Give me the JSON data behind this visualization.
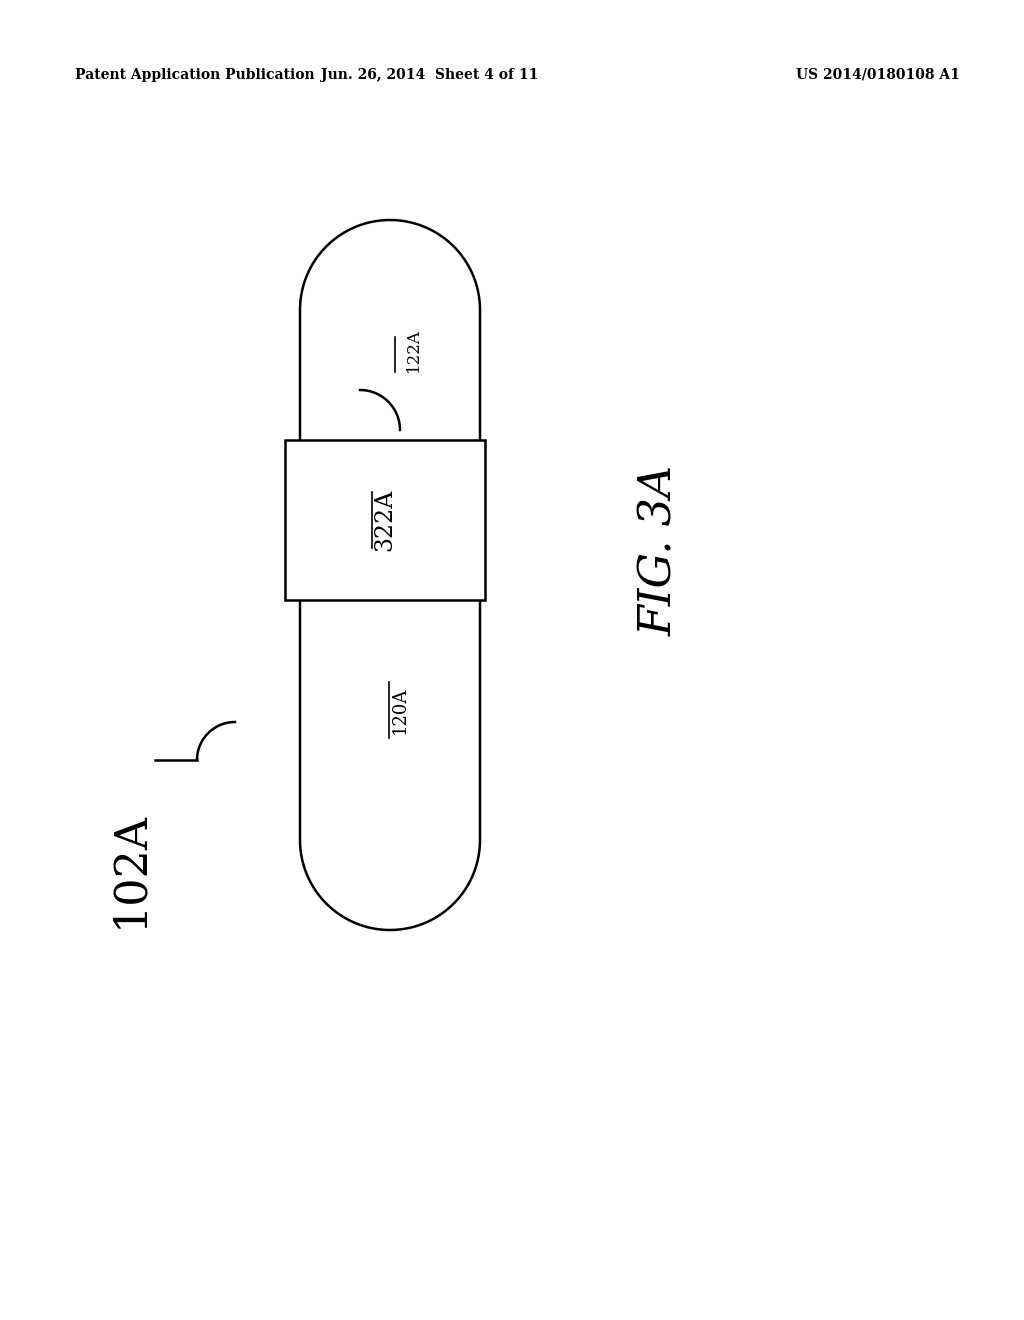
{
  "bg_color": "#ffffff",
  "header_left": "Patent Application Publication",
  "header_center": "Jun. 26, 2014  Sheet 4 of 11",
  "header_right": "US 2014/0180108 A1",
  "fig_label": "FIG. 3A",
  "label_102A": "102A",
  "label_120A": "120A",
  "label_122A": "122A",
  "label_322A": "322A",
  "line_color": "#000000",
  "text_color": "#000000",
  "line_width": 1.8
}
